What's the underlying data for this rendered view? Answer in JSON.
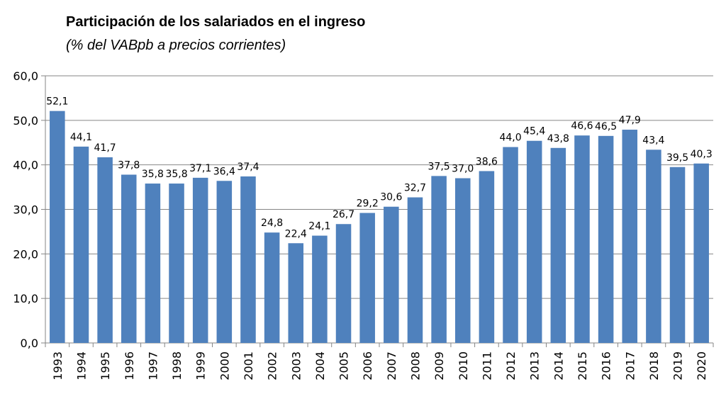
{
  "chart_data": {
    "type": "bar",
    "title": "Participación de los salariados en el ingreso",
    "subtitle": "(% del VABpb a precios corrientes)",
    "categories": [
      "1993",
      "1994",
      "1995",
      "1996",
      "1997",
      "1998",
      "1999",
      "2000",
      "2001",
      "2002",
      "2003",
      "2004",
      "2005",
      "2006",
      "2007",
      "2008",
      "2009",
      "2010",
      "2011",
      "2012",
      "2013",
      "2014",
      "2015",
      "2016",
      "2017",
      "2018",
      "2019",
      "2020"
    ],
    "values": [
      52.1,
      44.1,
      41.7,
      37.8,
      35.8,
      35.8,
      37.1,
      36.4,
      37.4,
      24.8,
      22.4,
      24.1,
      26.7,
      29.2,
      30.6,
      32.7,
      37.5,
      37.0,
      38.6,
      44.0,
      45.4,
      43.8,
      46.6,
      46.5,
      47.9,
      43.4,
      39.5,
      40.3
    ],
    "value_labels": [
      "52,1",
      "44,1",
      "41,7",
      "37,8",
      "35,8",
      "35,8",
      "37,1",
      "36,4",
      "37,4",
      "24,8",
      "22,4",
      "24,1",
      "26,7",
      "29,2",
      "30,6",
      "32,7",
      "37,5",
      "37,0",
      "38,6",
      "44,0",
      "45,4",
      "43,8",
      "46,6",
      "46,5",
      "47,9",
      "43,4",
      "39,5",
      "40,3"
    ],
    "yticks": [
      "0,0",
      "10,0",
      "20,0",
      "30,0",
      "40,0",
      "50,0",
      "60,0"
    ],
    "ylim": [
      0,
      60
    ],
    "xlabel": "",
    "ylabel": "",
    "grid": true,
    "legend": "none",
    "bar_color": "#4F81BD",
    "grid_color": "#868686"
  }
}
